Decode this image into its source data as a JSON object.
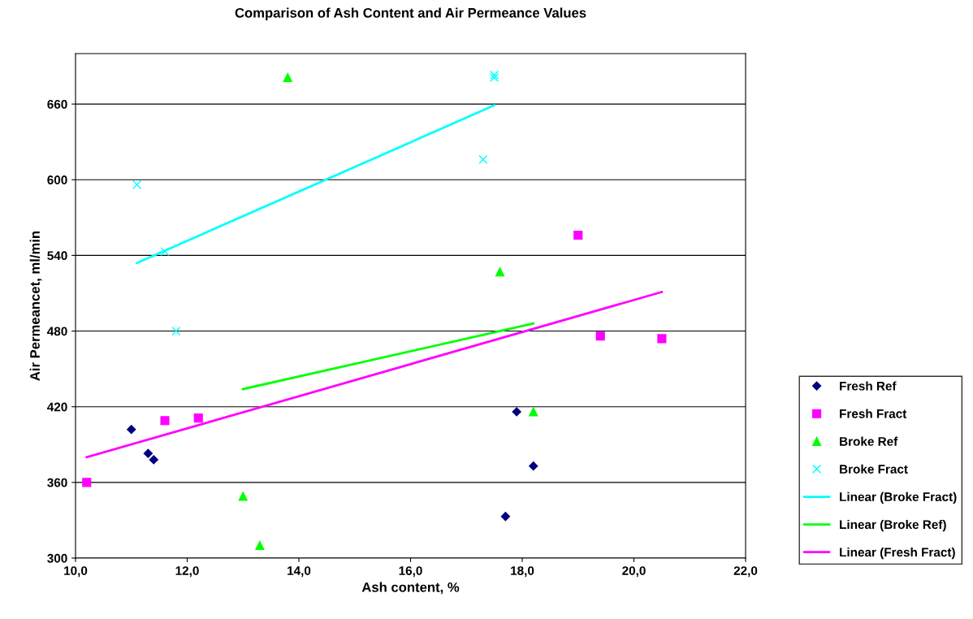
{
  "chart_data": {
    "type": "scatter",
    "title": "Comparison of Ash Content and Air Permeance Values",
    "xlabel": "Ash content, %",
    "ylabel": "Air Permeancet, ml/min",
    "xlim": [
      10,
      22
    ],
    "xticks": [
      {
        "value": 10,
        "label": "10,0"
      },
      {
        "value": 12,
        "label": "12,0"
      },
      {
        "value": 14,
        "label": "14,0"
      },
      {
        "value": 16,
        "label": "16,0"
      },
      {
        "value": 18,
        "label": "18,0"
      },
      {
        "value": 20,
        "label": "20,0"
      },
      {
        "value": 22,
        "label": "22,0"
      }
    ],
    "ylim": [
      300,
      700
    ],
    "yticks": [
      300,
      360,
      420,
      480,
      540,
      600,
      660
    ],
    "grid": "y",
    "legend": "right",
    "series": [
      {
        "name": "Fresh Ref",
        "color": "#000080",
        "marker": "diamond",
        "x": [
          11.0,
          11.3,
          11.4,
          17.9,
          18.2,
          17.7
        ],
        "values": [
          402,
          383,
          378,
          416,
          373,
          333
        ]
      },
      {
        "name": "Fresh Fract",
        "color": "#ff00ff",
        "marker": "square",
        "x": [
          10.2,
          11.6,
          12.2,
          19.0,
          19.4,
          20.5
        ],
        "values": [
          360,
          409,
          411,
          556,
          476,
          474
        ]
      },
      {
        "name": "Broke Ref",
        "color": "#00ff00",
        "marker": "triangle",
        "x": [
          13.8,
          17.6,
          18.2,
          13.0,
          13.3
        ],
        "values": [
          681,
          527,
          416,
          349,
          310
        ]
      },
      {
        "name": "Broke Fract",
        "color": "#00ffff",
        "marker": "cross",
        "x": [
          17.5,
          17.5,
          17.3,
          11.1,
          11.6,
          11.8
        ],
        "values": [
          681,
          683,
          616,
          596,
          543,
          480
        ]
      },
      {
        "name": "Linear (Broke Fract)",
        "type": "line",
        "color": "#00ffff",
        "x": [
          11.1,
          17.5
        ],
        "values": [
          534,
          659
        ]
      },
      {
        "name": "Linear (Broke Ref)",
        "type": "line",
        "color": "#00ff00",
        "x": [
          13.0,
          18.2
        ],
        "values": [
          434,
          486
        ]
      },
      {
        "name": "Linear (Fresh Fract)",
        "type": "line",
        "color": "#ff00ff",
        "x": [
          10.2,
          20.5
        ],
        "values": [
          380,
          511
        ]
      }
    ]
  }
}
